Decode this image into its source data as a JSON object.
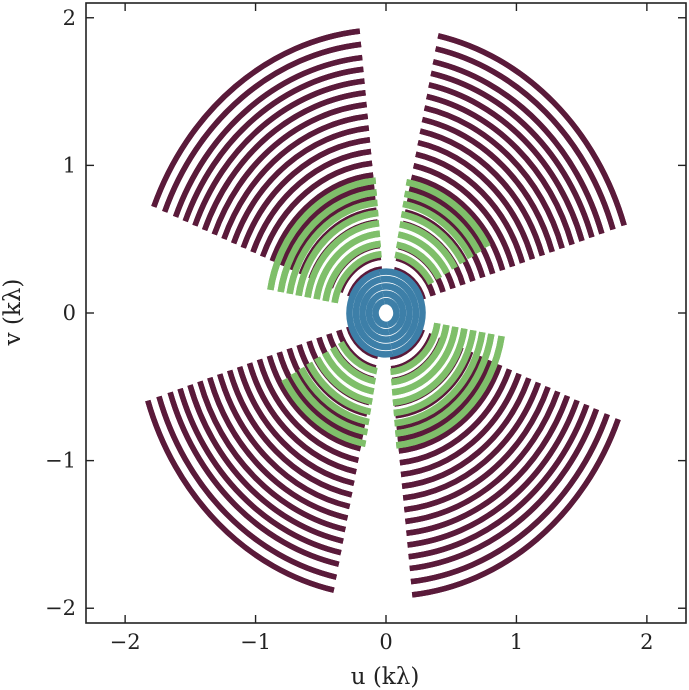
{
  "chart_data": {
    "type": "scatter",
    "title": "",
    "xlabel": "u (kλ)",
    "ylabel": "v (kλ)",
    "xlim": [
      -2.3,
      2.3
    ],
    "ylim": [
      -2.1,
      2.1
    ],
    "xticks": [
      -2,
      -1,
      0,
      1,
      2
    ],
    "yticks": [
      -2,
      -1,
      0,
      1,
      2
    ],
    "xtick_labels": [
      "−2",
      "−1",
      "0",
      "1",
      "2"
    ],
    "ytick_labels": [
      "−2",
      "−1",
      "0",
      "1",
      "2"
    ],
    "grid": false,
    "legend": "none",
    "series": [
      {
        "color": "#5a1a3a",
        "rings": [
          0.3,
          0.38,
          0.46,
          0.54,
          0.62,
          0.7,
          0.78,
          0.86,
          0.94,
          1.02,
          1.1,
          1.18,
          1.26,
          1.34,
          1.42,
          1.5,
          1.58,
          1.66,
          1.74,
          1.83,
          1.92
        ],
        "arcs_deg": [
          [
            18,
            78
          ],
          [
            96,
            158
          ],
          [
            198,
            258
          ],
          [
            276,
            338
          ]
        ]
      },
      {
        "color": "#7fbf6a",
        "rings": [
          0.4,
          0.47,
          0.54,
          0.61,
          0.68,
          0.75,
          0.82,
          0.9
        ],
        "arcs_deg": [
          [
            30,
            80
          ],
          [
            95,
            170
          ],
          [
            210,
            260
          ],
          [
            275,
            350
          ]
        ]
      },
      {
        "color": "#3d7fa8",
        "rings": [
          0.08,
          0.13,
          0.18,
          0.23,
          0.28
        ],
        "arcs_deg": [
          [
            20,
            100
          ],
          [
            140,
            250
          ],
          [
            280,
            340
          ]
        ]
      }
    ]
  }
}
